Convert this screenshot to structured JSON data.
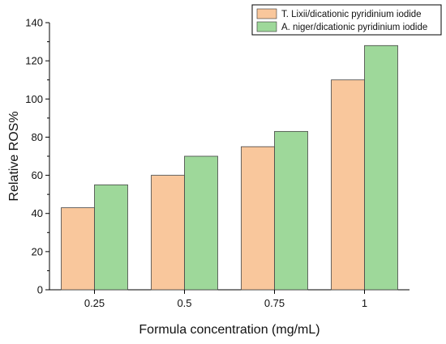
{
  "chart_data": {
    "type": "bar",
    "title": "",
    "xlabel": "Formula concentration (mg/mL)",
    "ylabel": "Relative ROS%",
    "categories": [
      "0.25",
      "0.5",
      "0.75",
      "1"
    ],
    "ylim": [
      0,
      140
    ],
    "yticks": [
      "0",
      "20",
      "40",
      "60",
      "80",
      "100",
      "120",
      "140"
    ],
    "grid": false,
    "legend_position": "top-right",
    "series": [
      {
        "name": "T. Lixii/dicationic pyridinium iodide",
        "color": "#f9c79c",
        "values": [
          43,
          60,
          75,
          110
        ]
      },
      {
        "name": "A. niger/dicationic pyridinium iodide",
        "color": "#9ed89a",
        "values": [
          55,
          70,
          83,
          128
        ]
      }
    ]
  }
}
